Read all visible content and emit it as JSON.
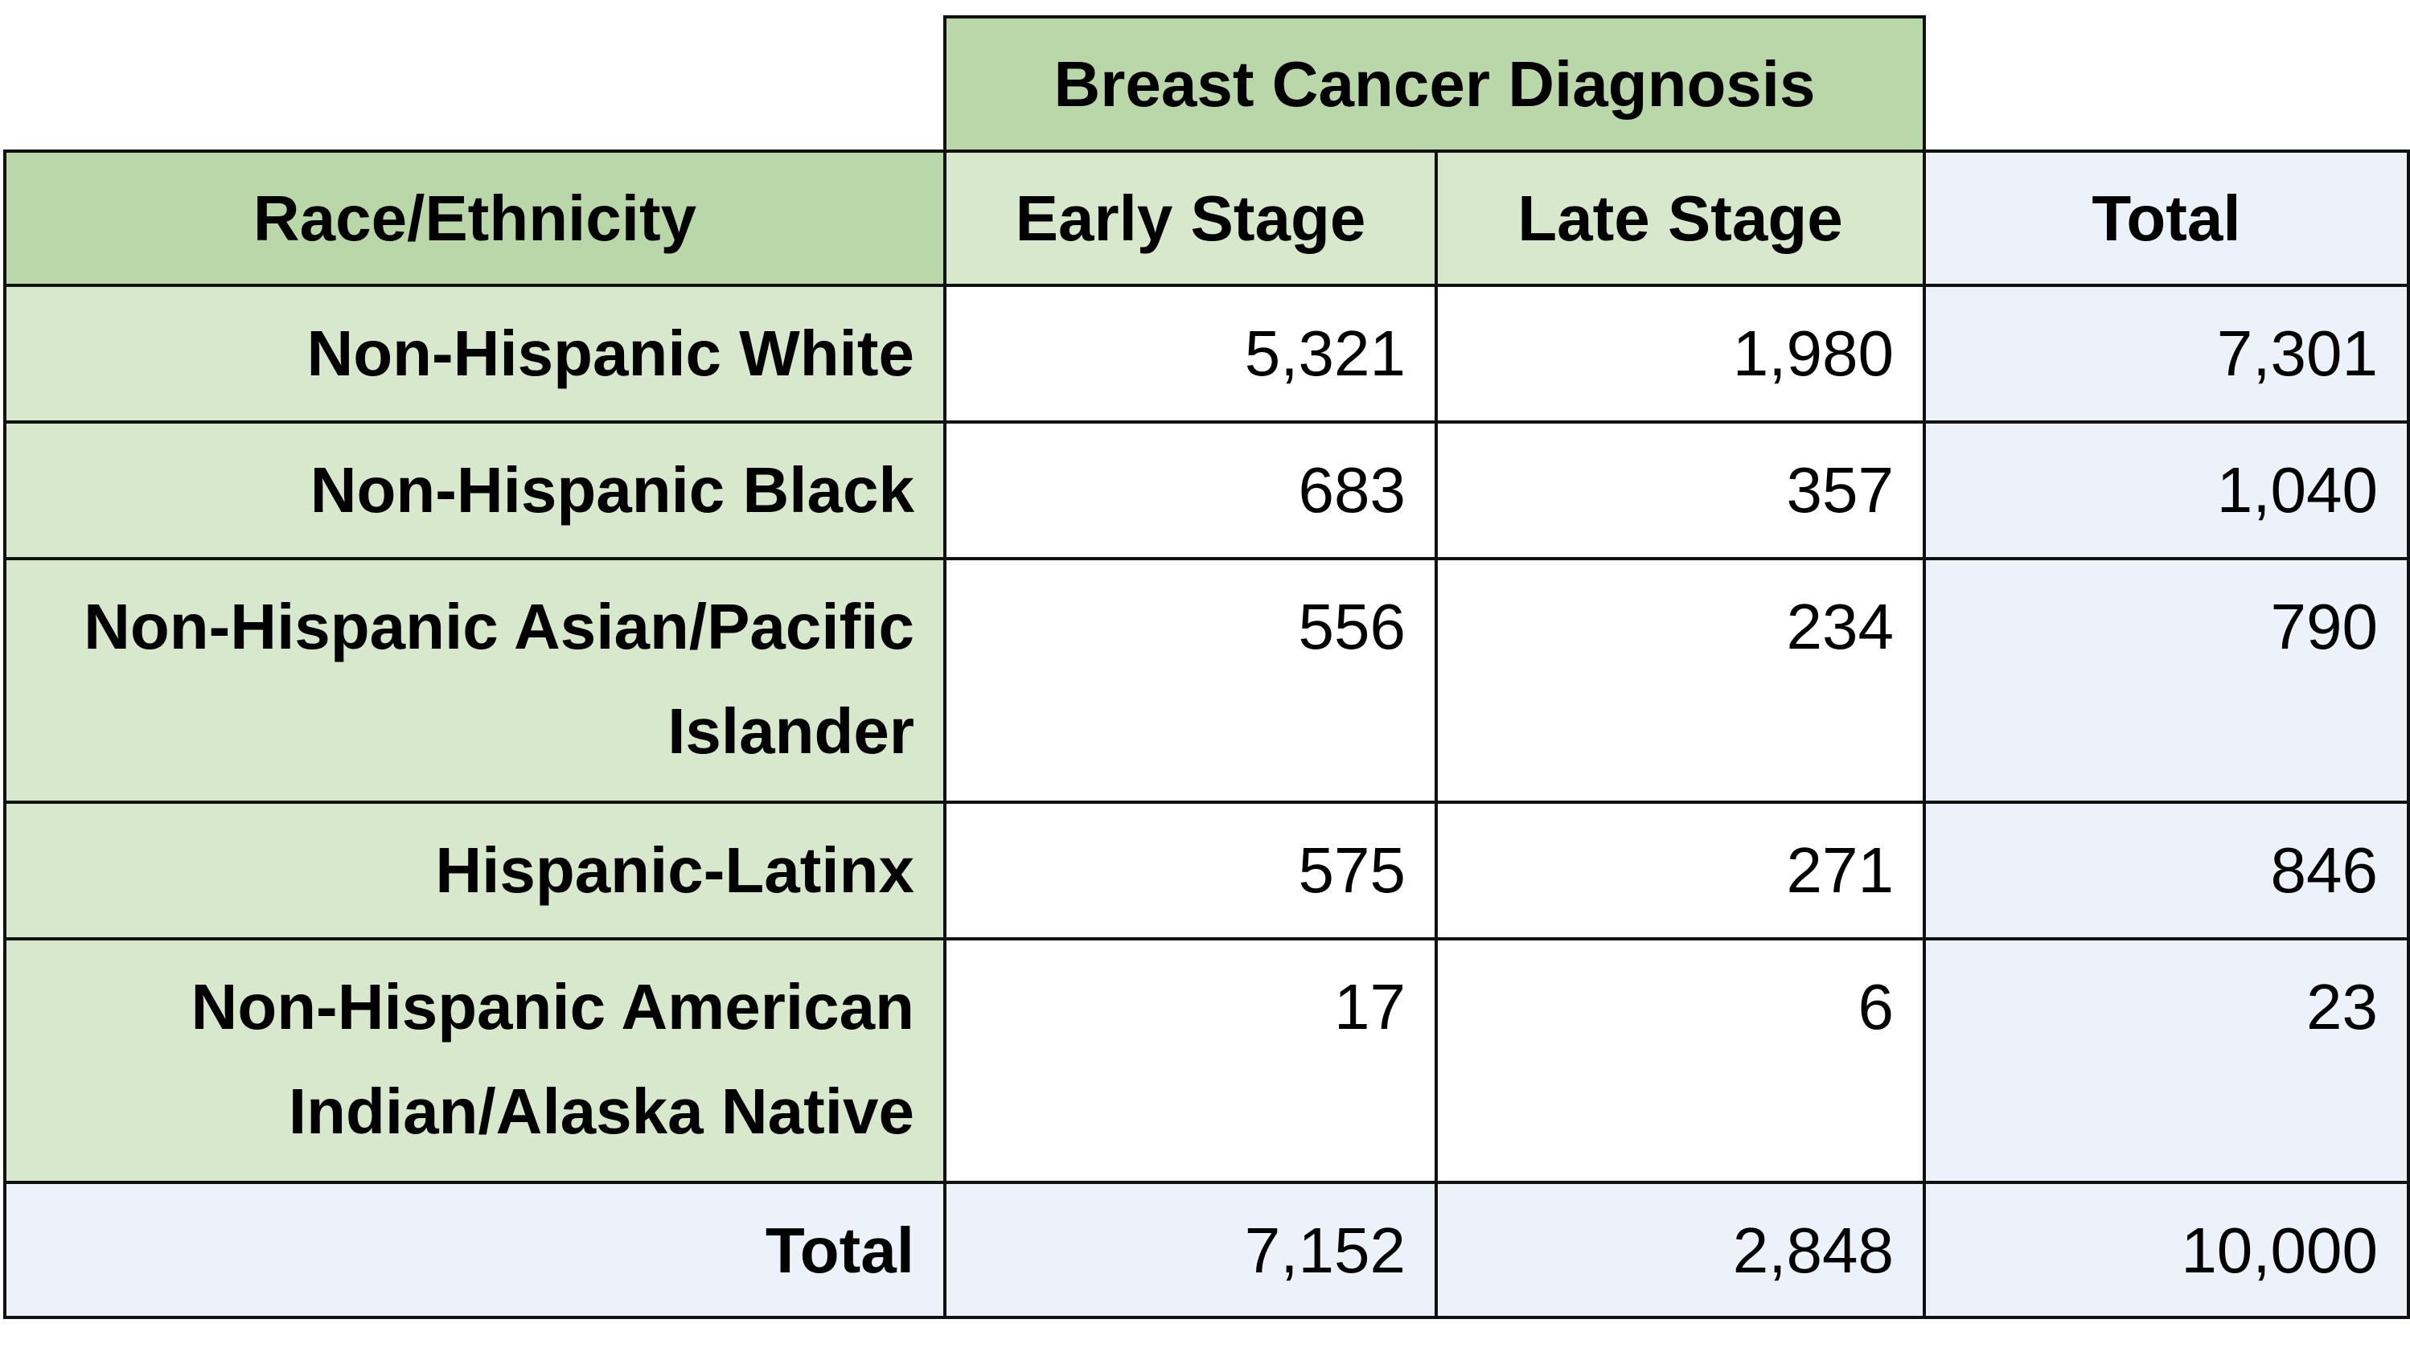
{
  "table": {
    "group_header": "Breast Cancer Diagnosis",
    "columns": [
      "Race/Ethnicity",
      "Early Stage",
      "Late Stage",
      "Total"
    ],
    "rows": [
      [
        "Non-Hispanic White",
        "5,321",
        "1,980",
        "7,301"
      ],
      [
        "Non-Hispanic Black",
        "683",
        "357",
        "1,040"
      ],
      [
        "Non-Hispanic Asian/Pacific Islander",
        "556",
        "234",
        "790"
      ],
      [
        "Hispanic-Latinx",
        "575",
        "271",
        "846"
      ],
      [
        "Non-Hispanic American Indian/Alaska Native",
        "17",
        "6",
        "23"
      ]
    ],
    "footer": [
      "Total",
      "7,152",
      "2,848",
      "10,000"
    ]
  }
}
